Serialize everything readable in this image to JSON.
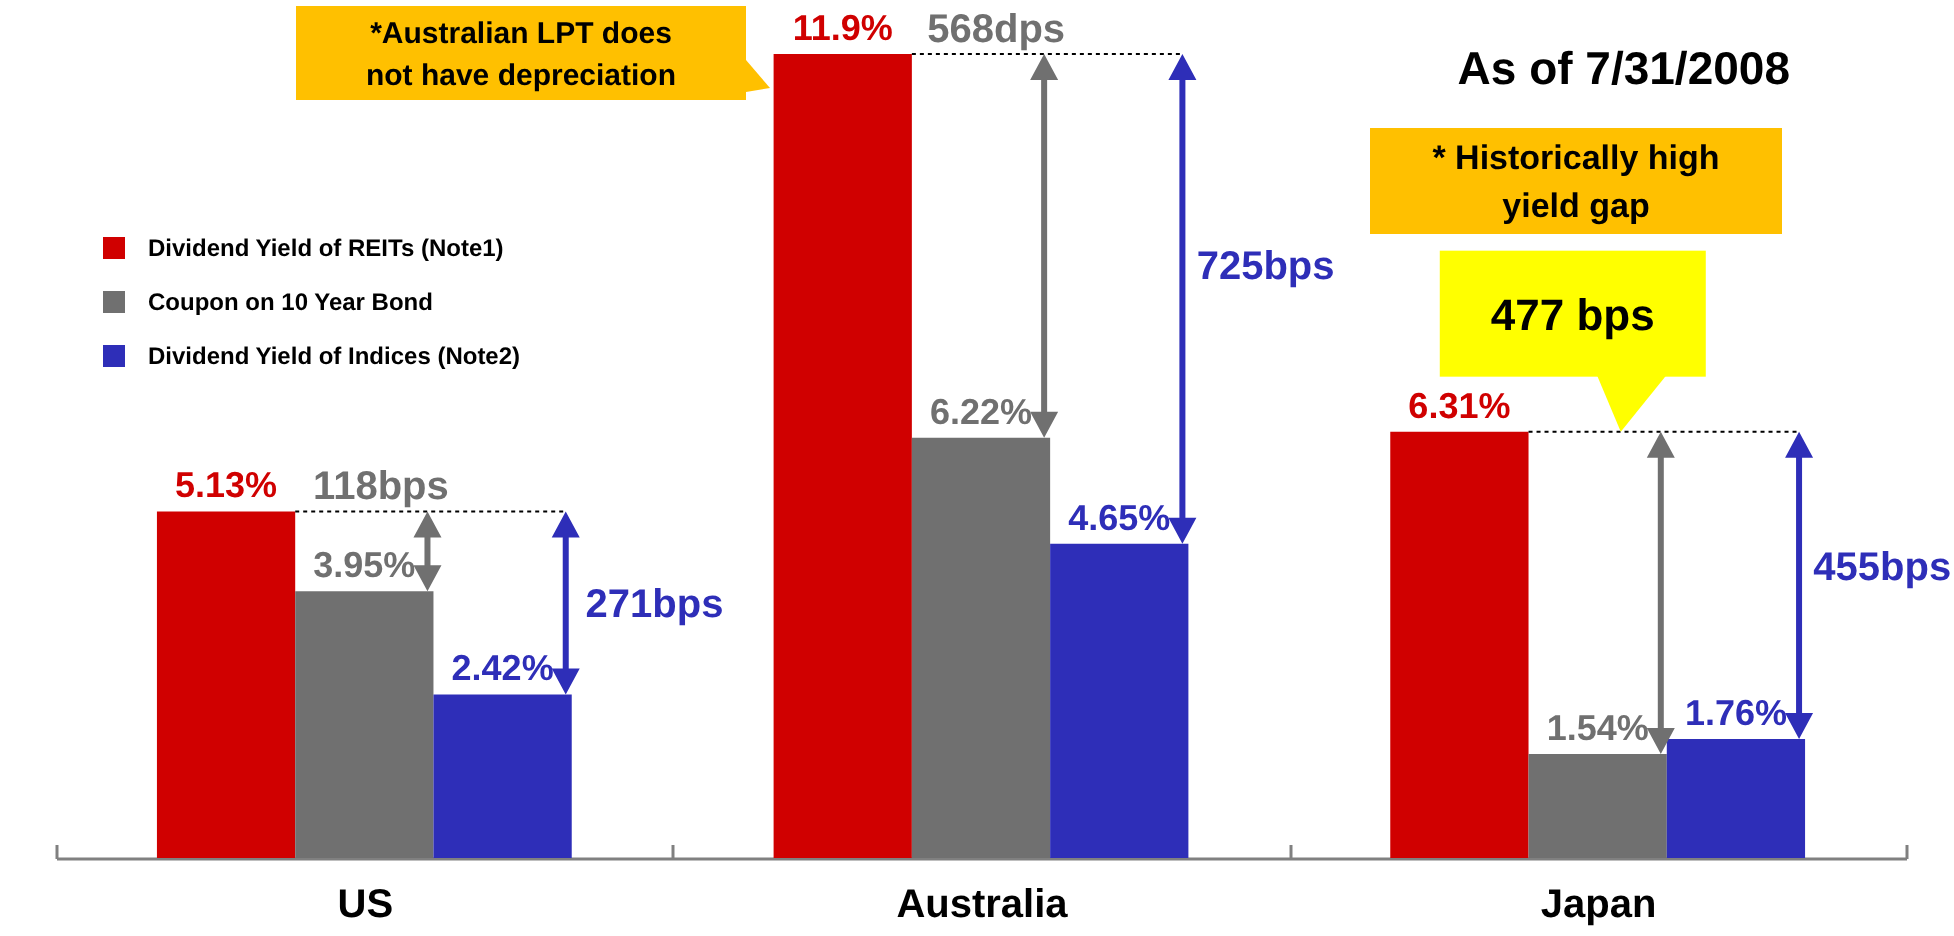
{
  "chart_data": {
    "type": "bar",
    "title": "As of 7/31/2008",
    "categories": [
      "US",
      "Australia",
      "Japan"
    ],
    "series": [
      {
        "name": "Dividend Yield of REITs (Note1)",
        "color": "#d00000",
        "values": [
          5.13,
          11.9,
          6.31
        ],
        "value_labels": [
          "5.13%",
          "11.9%",
          "6.31%"
        ]
      },
      {
        "name": "Coupon on 10 Year Bond",
        "color": "#707070",
        "values": [
          3.95,
          6.22,
          1.54
        ],
        "value_labels": [
          "3.95%",
          "6.22%",
          "1.54%"
        ]
      },
      {
        "name": "Dividend Yield of Indices (Note2)",
        "color": "#2e2eb8",
        "values": [
          2.42,
          4.65,
          1.76
        ],
        "value_labels": [
          "2.42%",
          "4.65%",
          "1.76%"
        ]
      }
    ],
    "legend": "top left",
    "annotations": [
      "*Australian LPT does not have depreciation",
      "* Historically high yield gap",
      "568dps",
      "725bps",
      "118bps",
      "271bps",
      "477 bps",
      "455bps"
    ]
  }
}
